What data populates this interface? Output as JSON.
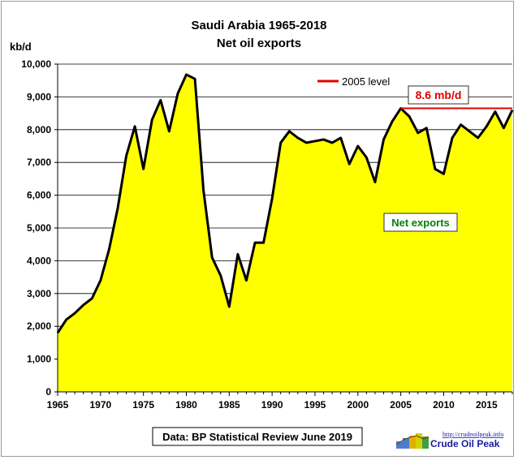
{
  "chart_data": {
    "type": "area",
    "title": "Saudi Arabia 1965-2018",
    "subtitle": "Net oil exports",
    "ylabel": "kb/d",
    "xlabel": "",
    "xlim": [
      1965,
      2018
    ],
    "ylim": [
      0,
      10000
    ],
    "x_ticks": [
      1965,
      1970,
      1975,
      1980,
      1985,
      1990,
      1995,
      2000,
      2005,
      2010,
      2015
    ],
    "y_ticks": [
      0,
      1000,
      2000,
      3000,
      4000,
      5000,
      6000,
      7000,
      8000,
      9000,
      10000
    ],
    "y_tick_labels": [
      "0",
      "1,000",
      "2,000",
      "3,000",
      "4,000",
      "5,000",
      "6,000",
      "7,000",
      "8,000",
      "9,000",
      "10,000"
    ],
    "grid": true,
    "series": [
      {
        "name": "Net exports",
        "fill": "#ffff00",
        "line": "#000000",
        "x": [
          1965,
          1966,
          1967,
          1968,
          1969,
          1970,
          1971,
          1972,
          1973,
          1974,
          1975,
          1976,
          1977,
          1978,
          1979,
          1980,
          1981,
          1982,
          1983,
          1984,
          1985,
          1986,
          1987,
          1988,
          1989,
          1990,
          1991,
          1992,
          1993,
          1994,
          1995,
          1996,
          1997,
          1998,
          1999,
          2000,
          2001,
          2002,
          2003,
          2004,
          2005,
          2006,
          2007,
          2008,
          2009,
          2010,
          2011,
          2012,
          2013,
          2014,
          2015,
          2016,
          2017,
          2018
        ],
        "values": [
          1800,
          2200,
          2400,
          2650,
          2850,
          3400,
          4350,
          5600,
          7200,
          8100,
          6800,
          8300,
          8900,
          7950,
          9100,
          9680,
          9550,
          6150,
          4100,
          3550,
          2600,
          4200,
          3400,
          4550,
          4550,
          5900,
          7600,
          7950,
          7750,
          7600,
          7650,
          7700,
          7600,
          7750,
          6950,
          7500,
          7150,
          6400,
          7700,
          8250,
          8650,
          8400,
          7900,
          8050,
          6800,
          6650,
          7750,
          8150,
          7950,
          7750,
          8100,
          8550,
          8050,
          8600
        ]
      }
    ],
    "reference_line": {
      "name": "2005 level",
      "value": 8650,
      "from": 2005,
      "to": 2018,
      "color": "#e00000",
      "label": "8.6 mb/d"
    },
    "legend": {
      "placement": "top-right",
      "entries": [
        "2005 level"
      ]
    },
    "annotations": [
      "Net exports",
      "8.6 mb/d"
    ]
  },
  "footer": {
    "source": "Data: BP Statistical Review June 2019",
    "logo_url": "http://crudeoilpeak.info",
    "logo_name": "Crude Oil Peak"
  },
  "colors": {
    "fill": "#ffff00",
    "line": "#000000",
    "reference": "#e00000",
    "series_label": "#008000"
  }
}
